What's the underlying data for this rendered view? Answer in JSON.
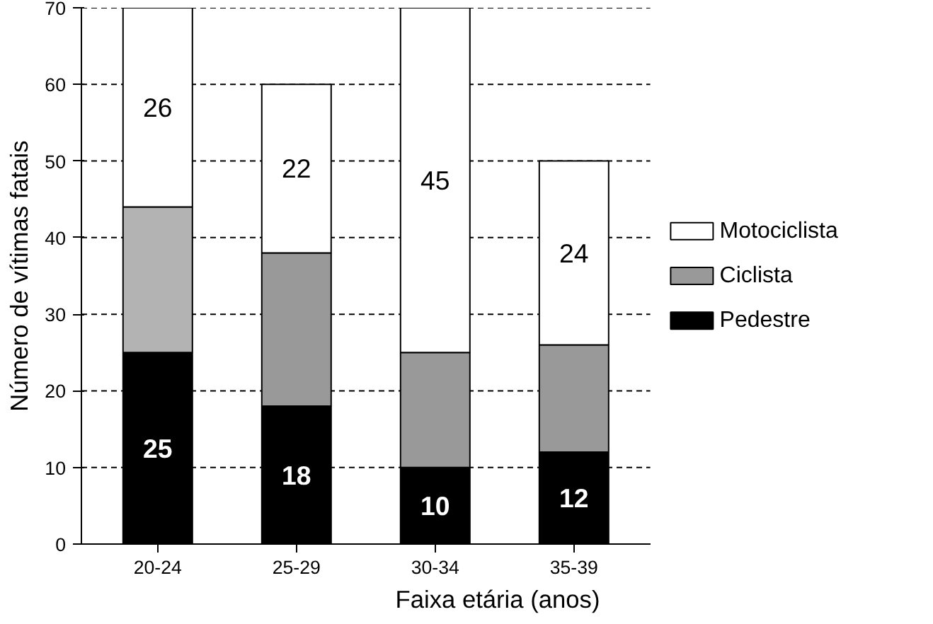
{
  "chart_data": {
    "type": "bar",
    "stacked": true,
    "xlabel": "Faixa etária (anos)",
    "ylabel": "Número de vítimas fatais",
    "categories": [
      "20-24",
      "25-29",
      "30-34",
      "35-39"
    ],
    "series": [
      {
        "name": "Pedestre",
        "color": "#000000",
        "values": [
          25,
          18,
          10,
          12
        ],
        "value_labels": [
          "25",
          "18",
          "10",
          "12"
        ]
      },
      {
        "name": "Ciclista",
        "color": "#999999",
        "colors": [
          "#b3b3b3",
          "#999999",
          "#999999",
          "#999999"
        ],
        "values": [
          19,
          20,
          15,
          14
        ]
      },
      {
        "name": "Motociclista",
        "color": "#ffffff",
        "values": [
          26,
          22,
          45,
          24
        ],
        "value_labels": [
          "26",
          "22",
          "45",
          "24"
        ]
      }
    ],
    "ylim": [
      0,
      70
    ],
    "yticks": [
      0,
      10,
      20,
      30,
      40,
      50,
      60,
      70
    ],
    "grid": "y",
    "legend": "right"
  }
}
